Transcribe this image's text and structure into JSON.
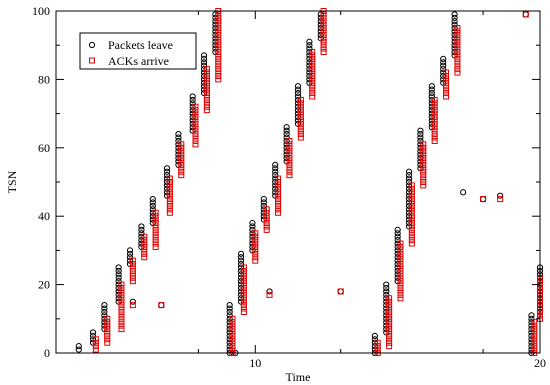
{
  "chart_data": {
    "type": "scatter",
    "title": "",
    "xlabel": "Time",
    "ylabel": "TSN",
    "xlim": [
      3,
      20
    ],
    "ylim": [
      0,
      100
    ],
    "x_ticks": [
      10,
      20
    ],
    "x_tick_labels": [
      "10",
      "20"
    ],
    "y_ticks": [
      0,
      20,
      40,
      60,
      80,
      100
    ],
    "y_tick_labels": [
      "0",
      "20",
      "40",
      "60",
      "80",
      "100"
    ],
    "grid": false,
    "legend_position": "top-left",
    "series": [
      {
        "name": "Packets leave",
        "marker": "circle",
        "color": "#000000",
        "segments": [
          {
            "x": [
              3.8,
              3.8
            ],
            "y": [
              1,
              2
            ]
          },
          {
            "x": [
              4.3,
              4.3
            ],
            "y": [
              3,
              6
            ]
          },
          {
            "x": [
              4.7,
              4.7
            ],
            "y": [
              7,
              14
            ]
          },
          {
            "x": [
              5.2,
              5.2
            ],
            "y": [
              15,
              25
            ]
          },
          {
            "x": [
              5.6,
              5.6
            ],
            "y": [
              26,
              30
            ]
          },
          {
            "x": [
              6.0,
              6.0
            ],
            "y": [
              31,
              37
            ]
          },
          {
            "x": [
              6.4,
              6.4
            ],
            "y": [
              38,
              45
            ]
          },
          {
            "x": [
              6.9,
              6.9
            ],
            "y": [
              46,
              54
            ]
          },
          {
            "x": [
              7.3,
              7.3
            ],
            "y": [
              55,
              64
            ]
          },
          {
            "x": [
              7.8,
              7.8
            ],
            "y": [
              65,
              75
            ]
          },
          {
            "x": [
              8.2,
              8.2
            ],
            "y": [
              76,
              87
            ]
          },
          {
            "x": [
              8.6,
              8.6
            ],
            "y": [
              88,
              99
            ]
          },
          {
            "x": [
              9.1,
              9.1
            ],
            "y": [
              0,
              14
            ]
          },
          {
            "x": [
              9.5,
              9.5
            ],
            "y": [
              15,
              29
            ]
          },
          {
            "x": [
              9.9,
              9.9
            ],
            "y": [
              30,
              38
            ]
          },
          {
            "x": [
              10.3,
              10.3
            ],
            "y": [
              39,
              45
            ]
          },
          {
            "x": [
              10.7,
              10.7
            ],
            "y": [
              46,
              55
            ]
          },
          {
            "x": [
              11.1,
              11.1
            ],
            "y": [
              56,
              66
            ]
          },
          {
            "x": [
              11.5,
              11.5
            ],
            "y": [
              67,
              78
            ]
          },
          {
            "x": [
              11.9,
              11.9
            ],
            "y": [
              79,
              91
            ]
          },
          {
            "x": [
              12.3,
              12.3
            ],
            "y": [
              92,
              99
            ]
          },
          {
            "x": [
              14.2,
              14.2
            ],
            "y": [
              0,
              5
            ]
          },
          {
            "x": [
              14.6,
              14.6
            ],
            "y": [
              6,
              20
            ]
          },
          {
            "x": [
              15.0,
              15.0
            ],
            "y": [
              21,
              36
            ]
          },
          {
            "x": [
              15.4,
              15.4
            ],
            "y": [
              37,
              53
            ]
          },
          {
            "x": [
              15.8,
              15.8
            ],
            "y": [
              54,
              65
            ]
          },
          {
            "x": [
              16.2,
              16.2
            ],
            "y": [
              66,
              78
            ]
          },
          {
            "x": [
              16.6,
              16.6
            ],
            "y": [
              79,
              86
            ]
          },
          {
            "x": [
              17.0,
              17.0
            ],
            "y": [
              87,
              99
            ]
          },
          {
            "x": [
              19.7,
              19.7
            ],
            "y": [
              0,
              11
            ]
          },
          {
            "x": [
              20.0,
              20.0
            ],
            "y": [
              12,
              25
            ]
          }
        ],
        "points": [
          {
            "x": 5.7,
            "y": 15
          },
          {
            "x": 6.7,
            "y": 14
          },
          {
            "x": 9.3,
            "y": 0
          },
          {
            "x": 10.5,
            "y": 18
          },
          {
            "x": 13.0,
            "y": 18
          },
          {
            "x": 17.3,
            "y": 47
          },
          {
            "x": 18.0,
            "y": 45
          },
          {
            "x": 18.6,
            "y": 46
          },
          {
            "x": 19.5,
            "y": 99
          }
        ]
      },
      {
        "name": "ACKs arrive",
        "marker": "square",
        "color": "#e00000",
        "segments": [
          {
            "x": [
              4.4,
              4.4
            ],
            "y": [
              1,
              4
            ]
          },
          {
            "x": [
              4.8,
              4.8
            ],
            "y": [
              3,
              10
            ]
          },
          {
            "x": [
              5.3,
              5.3
            ],
            "y": [
              7,
              20
            ]
          },
          {
            "x": [
              5.7,
              5.7
            ],
            "y": [
              21,
              27
            ]
          },
          {
            "x": [
              6.1,
              6.1
            ],
            "y": [
              28,
              34
            ]
          },
          {
            "x": [
              6.5,
              6.5
            ],
            "y": [
              31,
              41
            ]
          },
          {
            "x": [
              7.0,
              7.0
            ],
            "y": [
              41,
              51
            ]
          },
          {
            "x": [
              7.4,
              7.4
            ],
            "y": [
              52,
              61
            ]
          },
          {
            "x": [
              7.9,
              7.9
            ],
            "y": [
              61,
              72
            ]
          },
          {
            "x": [
              8.3,
              8.3
            ],
            "y": [
              71,
              83
            ]
          },
          {
            "x": [
              8.7,
              8.7
            ],
            "y": [
              80,
              100
            ]
          },
          {
            "x": [
              9.2,
              9.2
            ],
            "y": [
              0,
              10
            ]
          },
          {
            "x": [
              9.6,
              9.6
            ],
            "y": [
              12,
              25
            ]
          },
          {
            "x": [
              10.0,
              10.0
            ],
            "y": [
              27,
              35
            ]
          },
          {
            "x": [
              10.4,
              10.4
            ],
            "y": [
              36,
              42
            ]
          },
          {
            "x": [
              10.8,
              10.8
            ],
            "y": [
              41,
              51
            ]
          },
          {
            "x": [
              11.2,
              11.2
            ],
            "y": [
              52,
              62
            ]
          },
          {
            "x": [
              11.6,
              11.6
            ],
            "y": [
              63,
              74
            ]
          },
          {
            "x": [
              12.0,
              12.0
            ],
            "y": [
              75,
              88
            ]
          },
          {
            "x": [
              12.4,
              12.4
            ],
            "y": [
              88,
              100
            ]
          },
          {
            "x": [
              14.3,
              14.3
            ],
            "y": [
              0,
              3
            ]
          },
          {
            "x": [
              14.7,
              14.7
            ],
            "y": [
              2,
              16
            ]
          },
          {
            "x": [
              15.1,
              15.1
            ],
            "y": [
              16,
              32
            ]
          },
          {
            "x": [
              15.5,
              15.5
            ],
            "y": [
              32,
              49
            ]
          },
          {
            "x": [
              15.9,
              15.9
            ],
            "y": [
              49,
              61
            ]
          },
          {
            "x": [
              16.3,
              16.3
            ],
            "y": [
              62,
              74
            ]
          },
          {
            "x": [
              16.7,
              16.7
            ],
            "y": [
              75,
              82
            ]
          },
          {
            "x": [
              17.1,
              17.1
            ],
            "y": [
              82,
              95
            ]
          },
          {
            "x": [
              19.8,
              19.8
            ],
            "y": [
              0,
              9
            ]
          },
          {
            "x": [
              20.0,
              20.0
            ],
            "y": [
              10,
              22
            ]
          }
        ],
        "points": [
          {
            "x": 5.7,
            "y": 14
          },
          {
            "x": 6.7,
            "y": 14
          },
          {
            "x": 10.5,
            "y": 17
          },
          {
            "x": 13.0,
            "y": 18
          },
          {
            "x": 18.0,
            "y": 45
          },
          {
            "x": 18.6,
            "y": 45
          },
          {
            "x": 19.5,
            "y": 99
          }
        ]
      }
    ]
  }
}
